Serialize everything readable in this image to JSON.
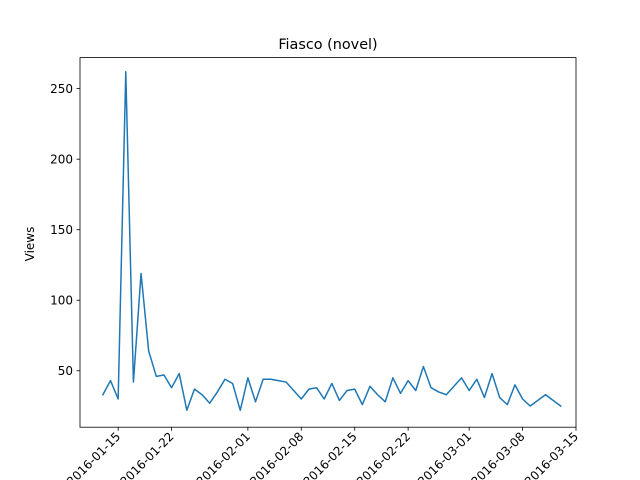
{
  "chart_data": {
    "type": "line",
    "title": "Fiasco (novel)",
    "xlabel": "",
    "ylabel": "Views",
    "x_axis_type": "date",
    "xlim": [
      "2016-01-10",
      "2016-03-15"
    ],
    "ylim": [
      10,
      272
    ],
    "x_ticks": [
      "2016-01-15",
      "2016-01-22",
      "2016-02-01",
      "2016-02-08",
      "2016-02-15",
      "2016-02-22",
      "2016-03-01",
      "2016-03-08",
      "2016-03-15"
    ],
    "y_ticks": [
      50,
      100,
      150,
      200,
      250
    ],
    "grid": false,
    "legend": false,
    "line_color": "#1f77b4",
    "series": [
      {
        "x": [
          "2016-01-13",
          "2016-01-14",
          "2016-01-15",
          "2016-01-16",
          "2016-01-17",
          "2016-01-18",
          "2016-01-19",
          "2016-01-20",
          "2016-01-21",
          "2016-01-22",
          "2016-01-23",
          "2016-01-24",
          "2016-01-25",
          "2016-01-26",
          "2016-01-27",
          "2016-01-28",
          "2016-01-29",
          "2016-01-30",
          "2016-01-31",
          "2016-02-01",
          "2016-02-02",
          "2016-02-03",
          "2016-02-04",
          "2016-02-05",
          "2016-02-06",
          "2016-02-07",
          "2016-02-08",
          "2016-02-09",
          "2016-02-10",
          "2016-02-11",
          "2016-02-12",
          "2016-02-13",
          "2016-02-14",
          "2016-02-15",
          "2016-02-16",
          "2016-02-17",
          "2016-02-18",
          "2016-02-19",
          "2016-02-20",
          "2016-02-21",
          "2016-02-22",
          "2016-02-23",
          "2016-02-24",
          "2016-02-25",
          "2016-02-26",
          "2016-02-27",
          "2016-02-28",
          "2016-02-29",
          "2016-03-01",
          "2016-03-02",
          "2016-03-03",
          "2016-03-04",
          "2016-03-05",
          "2016-03-06",
          "2016-03-07",
          "2016-03-08",
          "2016-03-09",
          "2016-03-10",
          "2016-03-11",
          "2016-03-12",
          "2016-03-13",
          "2016-03-14"
        ],
        "values": [
          33,
          43,
          30,
          262,
          42,
          119,
          64,
          46,
          47,
          38,
          48,
          22,
          37,
          33,
          27,
          35,
          44,
          41,
          22,
          45,
          28,
          44,
          44,
          43,
          42,
          36,
          30,
          37,
          38,
          30,
          41,
          29,
          36,
          37,
          26,
          39,
          33,
          28,
          45,
          34,
          43,
          36,
          53,
          38,
          35,
          33,
          39,
          45,
          36,
          44,
          31,
          48,
          31,
          26,
          40,
          30,
          25,
          29,
          33,
          29,
          25,
          null
        ]
      }
    ]
  }
}
